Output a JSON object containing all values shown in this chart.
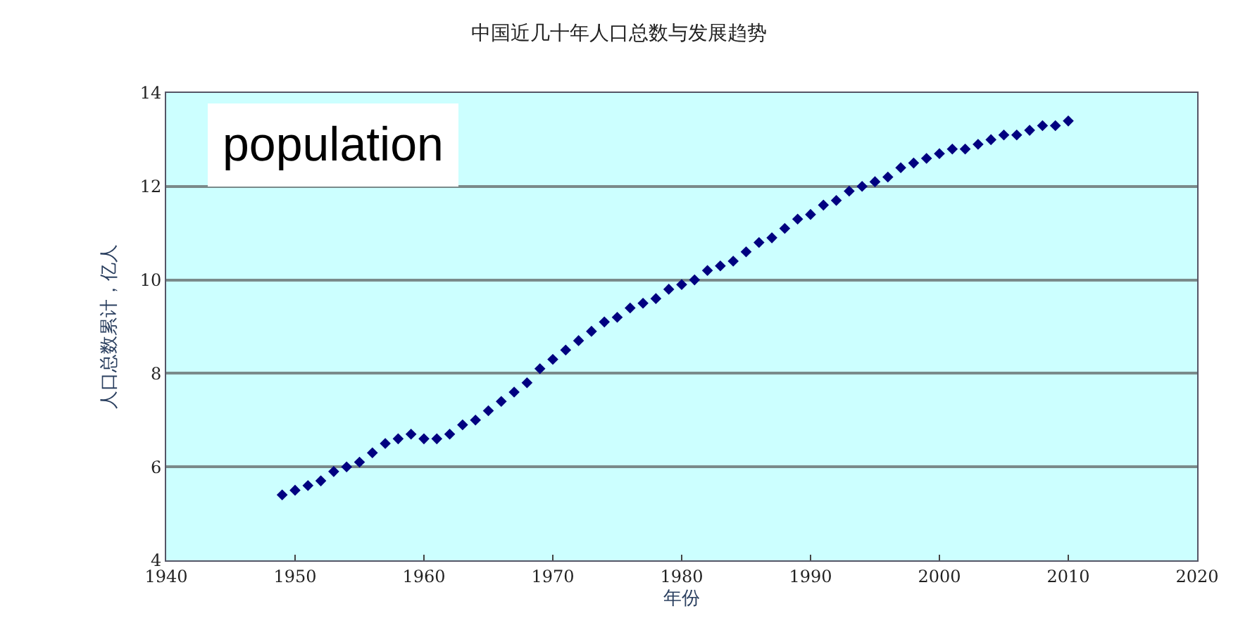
{
  "chart_data": {
    "type": "scatter",
    "title": "中国近几十年人口总数与发展趋势",
    "xlabel": "年份",
    "ylabel": "人口总数累计，亿人",
    "annotations": [
      "population"
    ],
    "x": [
      1949,
      1950,
      1951,
      1952,
      1953,
      1954,
      1955,
      1956,
      1957,
      1958,
      1959,
      1960,
      1961,
      1962,
      1963,
      1964,
      1965,
      1966,
      1967,
      1968,
      1969,
      1970,
      1971,
      1972,
      1973,
      1974,
      1975,
      1976,
      1977,
      1978,
      1979,
      1980,
      1981,
      1982,
      1983,
      1984,
      1985,
      1986,
      1987,
      1988,
      1989,
      1990,
      1991,
      1992,
      1993,
      1994,
      1995,
      1996,
      1997,
      1998,
      1999,
      2000,
      2001,
      2002,
      2003,
      2004,
      2005,
      2006,
      2007,
      2008,
      2009,
      2010
    ],
    "series": [
      {
        "color": "#000080",
        "values": [
          5.4,
          5.5,
          5.6,
          5.7,
          5.9,
          6.0,
          6.1,
          6.3,
          6.5,
          6.6,
          6.7,
          6.6,
          6.6,
          6.7,
          6.9,
          7.0,
          7.2,
          7.4,
          7.6,
          7.8,
          8.1,
          8.3,
          8.5,
          8.7,
          8.9,
          9.1,
          9.2,
          9.4,
          9.5,
          9.6,
          9.8,
          9.9,
          10.0,
          10.2,
          10.3,
          10.4,
          10.6,
          10.8,
          10.9,
          11.1,
          11.3,
          11.4,
          11.6,
          11.7,
          11.9,
          12.0,
          12.1,
          12.2,
          12.4,
          12.5,
          12.6,
          12.7,
          12.8,
          12.8,
          12.9,
          13.0,
          13.1,
          13.1,
          13.2,
          13.3,
          13.3,
          13.4
        ]
      }
    ],
    "xlim": [
      1940,
      2020
    ],
    "xticks": [
      1940,
      1950,
      1960,
      1970,
      1980,
      1990,
      2000,
      2010,
      2020
    ],
    "ylim": [
      4,
      14
    ],
    "yticks": [
      4,
      6,
      8,
      10,
      12,
      14
    ],
    "grid": "y",
    "marker": "diamond"
  }
}
